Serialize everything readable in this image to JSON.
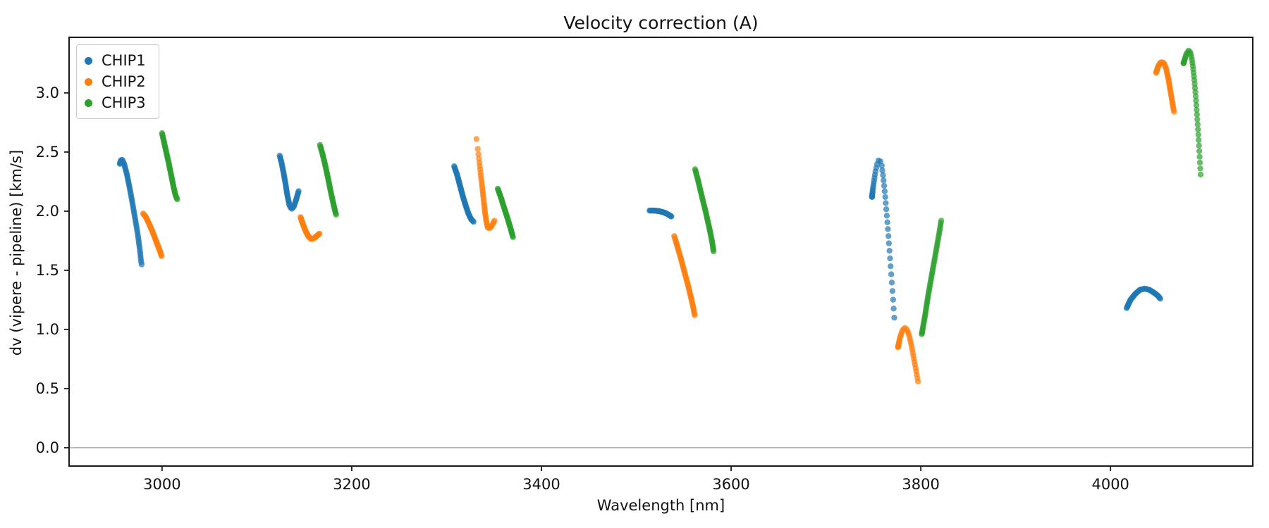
{
  "title": "Velocity correction (A)",
  "xlabel": "Wavelength [nm]",
  "ylabel": "dv (vipere - pipeline) [km/s]",
  "legend": {
    "position": "upper left",
    "items": [
      {
        "label": "CHIP1",
        "color": "#1f77b4"
      },
      {
        "label": "CHIP2",
        "color": "#ff7f0e"
      },
      {
        "label": "CHIP3",
        "color": "#2ca02c"
      }
    ]
  },
  "chart_data": {
    "type": "scatter",
    "title": "Velocity correction (A)",
    "xlabel": "Wavelength [nm]",
    "ylabel": "dv (vipere - pipeline) [km/s]",
    "xlim": [
      2902,
      4150
    ],
    "ylim": [
      -0.155,
      3.47
    ],
    "xticks": [
      3000,
      3200,
      3400,
      3600,
      3800,
      4000
    ],
    "yticks": [
      0.0,
      0.5,
      1.0,
      1.5,
      2.0,
      2.5,
      3.0
    ],
    "grid": false,
    "zero_line_y": 0.0,
    "zero_line_color": "#8a8a8a",
    "legend_position": "upper left",
    "marker": "dot",
    "marker_alpha": 0.7,
    "series": [
      {
        "name": "CHIP1",
        "color": "#1f77b4",
        "segments": [
          {
            "n_dots": 60,
            "gamma": 1.25,
            "points": [
              [
                2955.5,
                2.4
              ],
              [
                2956.5,
                2.43
              ],
              [
                2958,
                2.435
              ],
              [
                2960,
                2.4
              ],
              [
                2963,
                2.31
              ],
              [
                2966,
                2.19
              ],
              [
                2969,
                2.06
              ],
              [
                2972,
                1.92
              ],
              [
                2974.5,
                1.8
              ],
              [
                2976.5,
                1.68
              ],
              [
                2978,
                1.57
              ],
              [
                2978.5,
                1.55
              ]
            ]
          },
          {
            "n_dots": 55,
            "gamma": 1.0,
            "points": [
              [
                3124,
                2.47
              ],
              [
                3126,
                2.41
              ],
              [
                3128,
                2.33
              ],
              [
                3130,
                2.24
              ],
              [
                3132,
                2.14
              ],
              [
                3134,
                2.06
              ],
              [
                3135.5,
                2.03
              ],
              [
                3137,
                2.02
              ],
              [
                3139,
                2.04
              ],
              [
                3141.5,
                2.1
              ],
              [
                3144,
                2.17
              ]
            ]
          },
          {
            "n_dots": 55,
            "gamma": 1.0,
            "points": [
              [
                3308,
                2.38
              ],
              [
                3311,
                2.31
              ],
              [
                3314,
                2.22
              ],
              [
                3317,
                2.13
              ],
              [
                3320,
                2.05
              ],
              [
                3323,
                1.98
              ],
              [
                3326,
                1.93
              ],
              [
                3328.5,
                1.91
              ]
            ]
          },
          {
            "n_dots": 40,
            "gamma": 1.0,
            "points": [
              [
                3514,
                2.005
              ],
              [
                3519,
                2.005
              ],
              [
                3524,
                2.0
              ],
              [
                3529,
                1.99
              ],
              [
                3533,
                1.975
              ],
              [
                3537,
                1.955
              ]
            ]
          },
          {
            "n_dots": 42,
            "gamma": 1.9,
            "points": [
              [
                3748.5,
                2.12
              ],
              [
                3750,
                2.22
              ],
              [
                3752,
                2.33
              ],
              [
                3754.5,
                2.42
              ],
              [
                3756.5,
                2.44
              ],
              [
                3758.5,
                2.4
              ],
              [
                3760.5,
                2.28
              ],
              [
                3762.5,
                2.12
              ],
              [
                3764.5,
                1.93
              ],
              [
                3766.5,
                1.72
              ],
              [
                3768.5,
                1.5
              ],
              [
                3770.5,
                1.28
              ],
              [
                3772,
                1.1
              ]
            ]
          },
          {
            "n_dots": 48,
            "gamma": 1.0,
            "points": [
              [
                4017,
                1.18
              ],
              [
                4021,
                1.25
              ],
              [
                4026,
                1.3
              ],
              [
                4031,
                1.335
              ],
              [
                4036,
                1.345
              ],
              [
                4041,
                1.335
              ],
              [
                4046,
                1.31
              ],
              [
                4050,
                1.285
              ],
              [
                4052.5,
                1.26
              ]
            ]
          }
        ]
      },
      {
        "name": "CHIP2",
        "color": "#ff7f0e",
        "segments": [
          {
            "n_dots": 45,
            "gamma": 1.0,
            "points": [
              [
                2980,
                1.98
              ],
              [
                2983,
                1.95
              ],
              [
                2986,
                1.9
              ],
              [
                2989,
                1.845
              ],
              [
                2992,
                1.785
              ],
              [
                2995,
                1.72
              ],
              [
                2997.5,
                1.67
              ],
              [
                2999.5,
                1.62
              ]
            ]
          },
          {
            "n_dots": 45,
            "gamma": 1.0,
            "points": [
              [
                3146,
                1.95
              ],
              [
                3148.5,
                1.89
              ],
              [
                3151,
                1.84
              ],
              [
                3154,
                1.79
              ],
              [
                3157,
                1.765
              ],
              [
                3160,
                1.77
              ],
              [
                3163,
                1.79
              ],
              [
                3166,
                1.81
              ]
            ]
          },
          {
            "n_dots": 42,
            "gamma": 0.62,
            "points": [
              [
                3331.5,
                2.61
              ],
              [
                3333,
                2.52
              ],
              [
                3334.5,
                2.42
              ],
              [
                3336,
                2.31
              ],
              [
                3337.5,
                2.21
              ],
              [
                3339,
                2.1
              ],
              [
                3340.5,
                1.99
              ],
              [
                3342,
                1.91
              ],
              [
                3343.5,
                1.86
              ],
              [
                3345.5,
                1.855
              ],
              [
                3348,
                1.88
              ],
              [
                3350.5,
                1.92
              ]
            ]
          },
          {
            "n_dots": 55,
            "gamma": 1.0,
            "points": [
              [
                3540,
                1.79
              ],
              [
                3543,
                1.71
              ],
              [
                3547,
                1.6
              ],
              [
                3551,
                1.48
              ],
              [
                3555,
                1.36
              ],
              [
                3558,
                1.26
              ],
              [
                3560.5,
                1.17
              ],
              [
                3561.5,
                1.12
              ]
            ]
          },
          {
            "n_dots": 34,
            "gamma": 1.5,
            "points": [
              [
                3776,
                0.85
              ],
              [
                3778,
                0.93
              ],
              [
                3780.5,
                0.99
              ],
              [
                3783,
                1.015
              ],
              [
                3785.5,
                1.0
              ],
              [
                3788,
                0.94
              ],
              [
                3790.5,
                0.85
              ],
              [
                3793,
                0.74
              ],
              [
                3795.5,
                0.63
              ],
              [
                3797,
                0.56
              ]
            ]
          },
          {
            "n_dots": 45,
            "gamma": 1.2,
            "points": [
              [
                4048,
                3.17
              ],
              [
                4050.5,
                3.23
              ],
              [
                4053,
                3.26
              ],
              [
                4056,
                3.255
              ],
              [
                4058.5,
                3.21
              ],
              [
                4061,
                3.12
              ],
              [
                4063.5,
                3.0
              ],
              [
                4066,
                2.88
              ],
              [
                4067,
                2.84
              ]
            ]
          }
        ]
      },
      {
        "name": "CHIP3",
        "color": "#2ca02c",
        "segments": [
          {
            "n_dots": 55,
            "gamma": 1.0,
            "points": [
              [
                3000,
                2.66
              ],
              [
                3002.5,
                2.57
              ],
              [
                3005,
                2.48
              ],
              [
                3007.5,
                2.39
              ],
              [
                3010,
                2.29
              ],
              [
                3012,
                2.21
              ],
              [
                3014,
                2.14
              ],
              [
                3016,
                2.1
              ]
            ]
          },
          {
            "n_dots": 55,
            "gamma": 1.0,
            "points": [
              [
                3166.5,
                2.56
              ],
              [
                3169,
                2.49
              ],
              [
                3172,
                2.39
              ],
              [
                3175,
                2.28
              ],
              [
                3178,
                2.16
              ],
              [
                3181,
                2.05
              ],
              [
                3183.5,
                1.97
              ]
            ]
          },
          {
            "n_dots": 45,
            "gamma": 1.0,
            "points": [
              [
                3354,
                2.19
              ],
              [
                3357.5,
                2.11
              ],
              [
                3361,
                2.02
              ],
              [
                3365,
                1.92
              ],
              [
                3368,
                1.84
              ],
              [
                3370,
                1.78
              ]
            ]
          },
          {
            "n_dots": 55,
            "gamma": 1.0,
            "points": [
              [
                3562,
                2.355
              ],
              [
                3565.5,
                2.25
              ],
              [
                3569,
                2.13
              ],
              [
                3573,
                2.0
              ],
              [
                3577,
                1.86
              ],
              [
                3580,
                1.74
              ],
              [
                3581.5,
                1.66
              ]
            ]
          },
          {
            "n_dots": 58,
            "gamma": 1.15,
            "points": [
              [
                3801,
                0.96
              ],
              [
                3804.5,
                1.12
              ],
              [
                3808,
                1.3
              ],
              [
                3812,
                1.48
              ],
              [
                3816,
                1.66
              ],
              [
                3819.5,
                1.82
              ],
              [
                3821.5,
                1.92
              ]
            ]
          },
          {
            "n_dots": 40,
            "gamma": 1.7,
            "points": [
              [
                4077,
                3.25
              ],
              [
                4080,
                3.33
              ],
              [
                4082.5,
                3.36
              ],
              [
                4084.5,
                3.34
              ],
              [
                4086.5,
                3.25
              ],
              [
                4088.5,
                3.1
              ],
              [
                4090.5,
                2.9
              ],
              [
                4092.5,
                2.66
              ],
              [
                4094,
                2.45
              ],
              [
                4095,
                2.31
              ]
            ]
          }
        ]
      }
    ]
  }
}
